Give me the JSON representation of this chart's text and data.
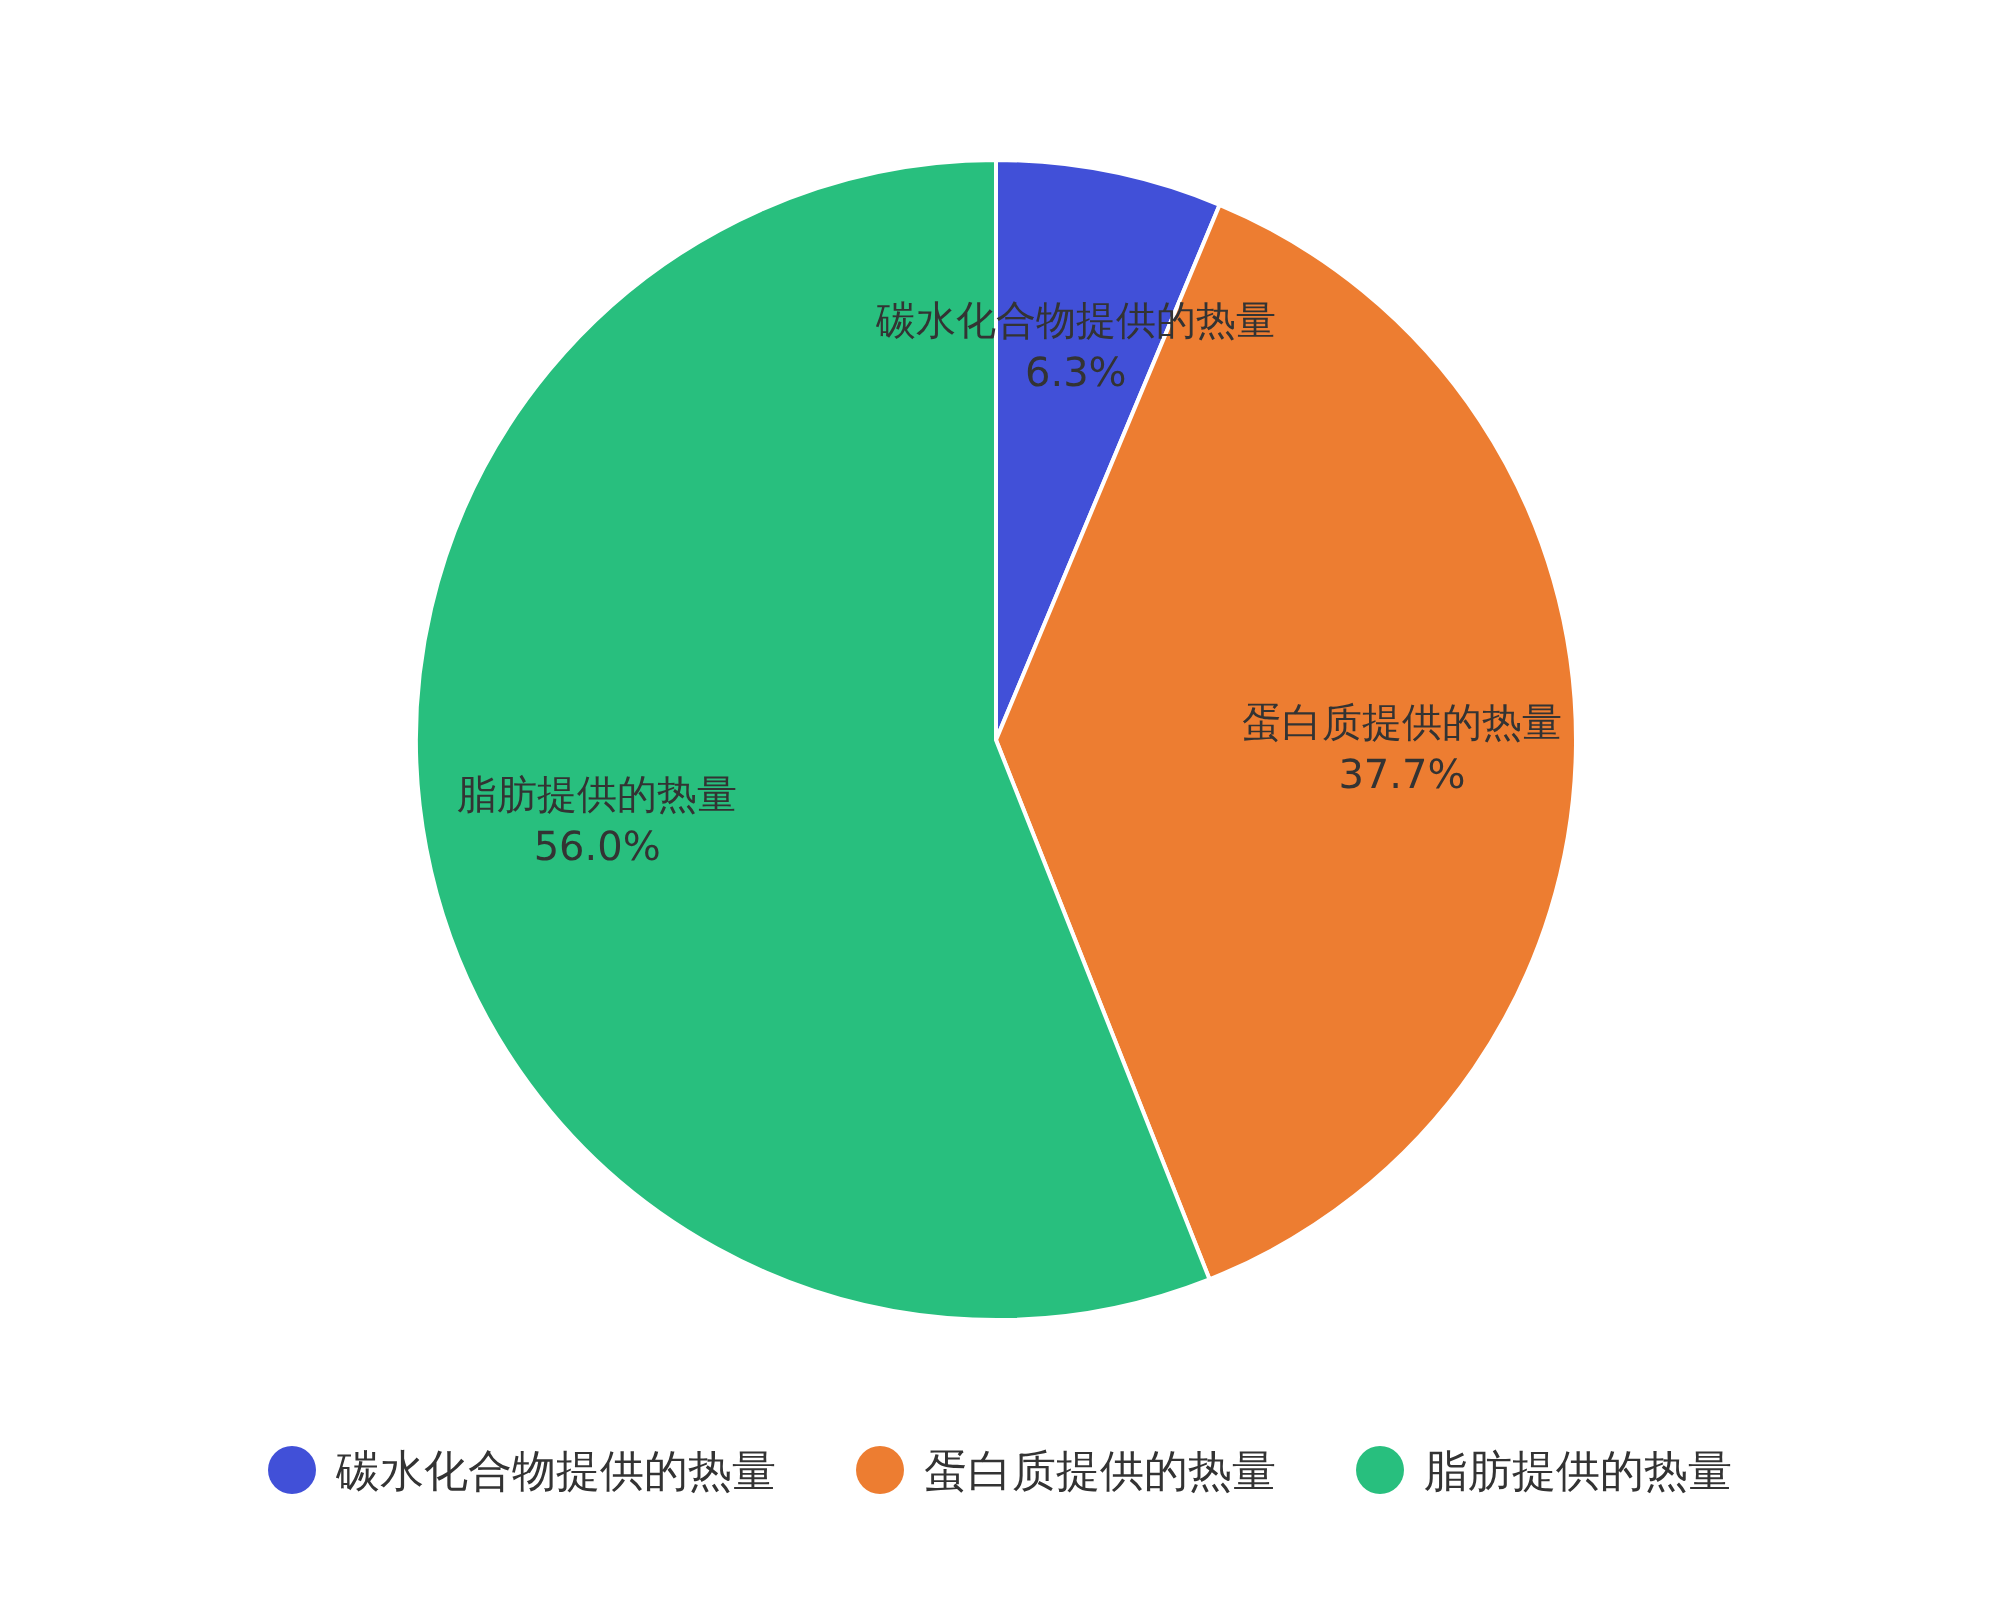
{
  "chart_data": {
    "type": "pie",
    "categories": [
      "碳水化合物提供的热量",
      "蛋白质提供的热量",
      "脂肪提供的热量"
    ],
    "values": [
      6.3,
      37.7,
      56.0
    ],
    "colors": [
      "#4150d8",
      "#ed7d31",
      "#28bf7e"
    ],
    "value_labels": [
      "6.3%",
      "37.7%",
      "56.0%"
    ],
    "legend": "bottom"
  }
}
